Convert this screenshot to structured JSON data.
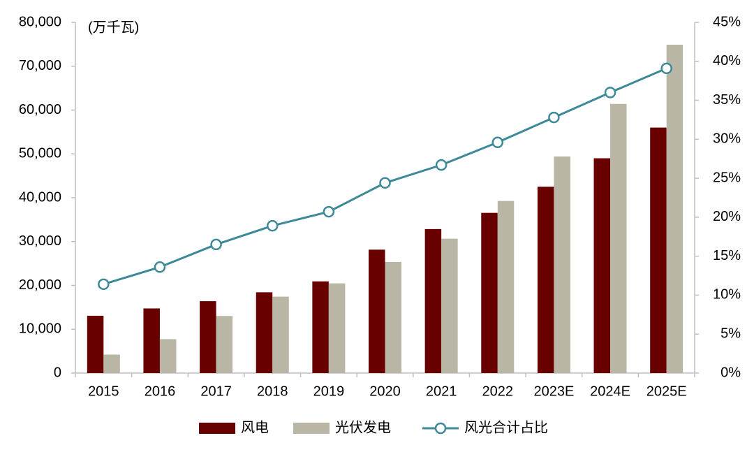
{
  "chart_data": {
    "type": "bar-line",
    "y_label": "(万千瓦)",
    "categories": [
      "2015",
      "2016",
      "2017",
      "2018",
      "2019",
      "2020",
      "2021",
      "2022",
      "2023E",
      "2024E",
      "2025E"
    ],
    "series": [
      {
        "name": "风电",
        "type": "bar",
        "color": "#680000",
        "values": [
          13075,
          14747,
          16400,
          18426,
          20915,
          28153,
          32848,
          36544,
          42500,
          49000,
          56000
        ]
      },
      {
        "name": "光伏发电",
        "type": "bar",
        "color": "#b9b6a5",
        "values": [
          4218,
          7742,
          13025,
          17433,
          20468,
          25343,
          30656,
          39261,
          49400,
          61400,
          74900
        ]
      },
      {
        "name": "风光合计占比",
        "type": "line",
        "axis": "y2",
        "color": "#3d8998",
        "values": [
          11.4,
          13.6,
          16.5,
          18.9,
          20.7,
          24.4,
          26.7,
          29.6,
          32.8,
          36.0,
          39.1
        ]
      }
    ],
    "ylim": [
      0,
      80000
    ],
    "yticks": [
      0,
      {
        "value": 10000,
        "label": "10,000"
      },
      {
        "value": 20000,
        "label": "20,000"
      },
      {
        "value": 30000,
        "label": "30,000"
      },
      {
        "value": 40000,
        "label": "40,000"
      },
      {
        "value": 50000,
        "label": "50,000"
      },
      {
        "value": 60000,
        "label": "60,000"
      },
      {
        "value": 70000,
        "label": "70,000"
      },
      {
        "value": 80000,
        "label": "80,000"
      }
    ],
    "y2lim": [
      0,
      45
    ],
    "y2ticks": [
      {
        "value": 0,
        "label": "0%"
      },
      {
        "value": 5,
        "label": "5%"
      },
      {
        "value": 10,
        "label": "10%"
      },
      {
        "value": 15,
        "label": "15%"
      },
      {
        "value": 20,
        "label": "20%"
      },
      {
        "value": 25,
        "label": "25%"
      },
      {
        "value": 30,
        "label": "30%"
      },
      {
        "value": 35,
        "label": "35%"
      },
      {
        "value": 40,
        "label": "40%"
      },
      {
        "value": 45,
        "label": "45%"
      }
    ],
    "grid": false,
    "legend": "bottom"
  }
}
